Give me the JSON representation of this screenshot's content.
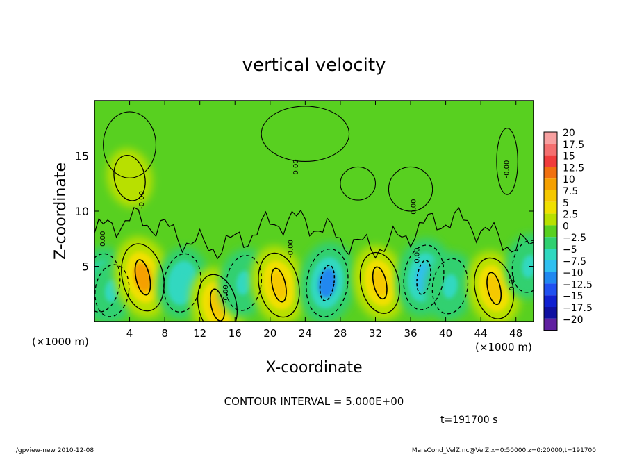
{
  "chart_data": {
    "type": "heatmap",
    "title": "vertical velocity",
    "xlabel": "X-coordinate",
    "ylabel": "Z-coordinate",
    "x_unit_left": "(×1000 m)",
    "x_unit_right": "(×1000 m)",
    "xlim": [
      0,
      50
    ],
    "ylim": [
      0,
      20
    ],
    "x_ticks": [
      4,
      8,
      12,
      16,
      20,
      24,
      28,
      32,
      36,
      40,
      44,
      48
    ],
    "y_ticks": [
      5,
      10,
      15
    ],
    "contour_interval_text": "CONTOUR INTERVAL = 5.000E+00",
    "time_text": "t=191700 s",
    "contour_labels": [
      "0.00",
      "-0.00"
    ],
    "colorbar": {
      "labels": [
        "20",
        "17.5",
        "15",
        "12.5",
        "10",
        "7.5",
        "5",
        "2.5",
        "0",
        "−2.5",
        "−5",
        "−7.5",
        "−10",
        "−12.5",
        "−15",
        "−17.5",
        "−20"
      ],
      "values": [
        20,
        17.5,
        15,
        12.5,
        10,
        7.5,
        5,
        2.5,
        0,
        -2.5,
        -5,
        -7.5,
        -10,
        -12.5,
        -15,
        -17.5,
        -20
      ],
      "colors": [
        "#f7a0a0",
        "#f46f6f",
        "#f03c3c",
        "#f07010",
        "#f5a000",
        "#f5c800",
        "#f0e000",
        "#b8e000",
        "#58d020",
        "#30d070",
        "#30d8c0",
        "#30c0f0",
        "#2088f0",
        "#2050f0",
        "#1020d0",
        "#1010a0",
        "#6020a0"
      ]
    },
    "features": [
      {
        "x": 0.8,
        "z": 3.5,
        "w": -6
      },
      {
        "x": 2.0,
        "z": 2.8,
        "w": -4
      },
      {
        "x": 5.5,
        "z": 4.0,
        "w": 9
      },
      {
        "x": 10.0,
        "z": 3.5,
        "w": -6
      },
      {
        "x": 14.0,
        "z": 1.5,
        "w": 7
      },
      {
        "x": 17.0,
        "z": 3.5,
        "w": -5
      },
      {
        "x": 21.0,
        "z": 3.3,
        "w": 8
      },
      {
        "x": 26.5,
        "z": 3.5,
        "w": -9
      },
      {
        "x": 32.5,
        "z": 3.5,
        "w": 7
      },
      {
        "x": 37.5,
        "z": 4.0,
        "w": -8
      },
      {
        "x": 40.5,
        "z": 3.2,
        "w": -5
      },
      {
        "x": 45.5,
        "z": 3.0,
        "w": 7
      },
      {
        "x": 49.5,
        "z": 5.0,
        "w": -4
      },
      {
        "x": 4.0,
        "z": 13.0,
        "w": 2
      }
    ]
  },
  "footer": {
    "left": "./gpview-new  2010-12-08",
    "right": "MarsCond_VelZ.nc@VelZ,x=0:50000,z=0:20000,t=191700"
  }
}
